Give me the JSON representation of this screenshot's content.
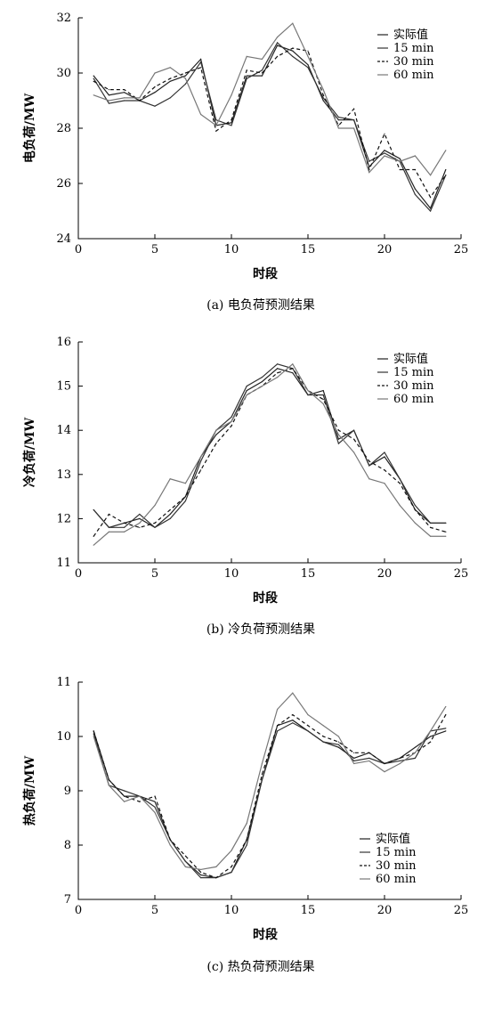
{
  "chart_data": [
    {
      "type": "line",
      "caption": "(a) 电负荷预测结果",
      "xlabel": "时段",
      "ylabel": "电负荷/MW",
      "xlim": [
        0,
        25
      ],
      "ylim": [
        24,
        32
      ],
      "xticks": [
        "0",
        "5",
        "10",
        "15",
        "20",
        "25"
      ],
      "yticks": [
        "24",
        "26",
        "28",
        "30",
        "32"
      ],
      "legend_position": "top-right",
      "grid": false,
      "x": [
        1,
        2,
        3,
        4,
        5,
        6,
        7,
        8,
        9,
        10,
        11,
        12,
        13,
        14,
        15,
        16,
        17,
        18,
        19,
        20,
        21,
        22,
        23,
        24
      ],
      "series": [
        {
          "name": "实际值",
          "dash": "solid",
          "color": "#222222",
          "values": [
            29.9,
            29.2,
            29.3,
            29.0,
            29.3,
            29.7,
            29.9,
            30.5,
            28.1,
            28.2,
            29.9,
            29.9,
            31.0,
            30.8,
            30.3,
            29.0,
            28.3,
            28.3,
            26.6,
            27.2,
            26.9,
            25.8,
            25.1,
            26.5
          ]
        },
        {
          "name": "15 min",
          "dash": "solid",
          "color": "#333333",
          "values": [
            29.8,
            28.9,
            29.0,
            29.0,
            28.8,
            29.1,
            29.6,
            30.4,
            28.3,
            28.1,
            29.8,
            30.1,
            31.1,
            30.6,
            30.2,
            29.1,
            28.4,
            28.3,
            26.8,
            27.1,
            26.8,
            25.6,
            25.0,
            26.3
          ]
        },
        {
          "name": "30 min",
          "dash": "dashed",
          "color": "#111111",
          "values": [
            29.7,
            29.4,
            29.4,
            29.0,
            29.5,
            29.8,
            30.0,
            30.2,
            27.9,
            28.3,
            30.1,
            30.0,
            30.6,
            30.9,
            30.8,
            29.2,
            28.1,
            28.7,
            26.5,
            27.8,
            26.5,
            26.5,
            25.5,
            26.3
          ]
        },
        {
          "name": "60 min",
          "dash": "solid",
          "color": "#777777",
          "values": [
            29.2,
            29.0,
            29.1,
            29.1,
            30.0,
            30.2,
            29.8,
            28.5,
            28.1,
            29.2,
            30.6,
            30.5,
            31.3,
            31.8,
            30.6,
            29.4,
            28.0,
            28.0,
            26.4,
            27.0,
            26.8,
            27.0,
            26.3,
            27.2
          ]
        }
      ]
    },
    {
      "type": "line",
      "caption": "(b) 冷负荷预测结果",
      "xlabel": "时段",
      "ylabel": "冷负荷/MW",
      "xlim": [
        0,
        25
      ],
      "ylim": [
        11,
        16
      ],
      "xticks": [
        "0",
        "5",
        "10",
        "15",
        "20",
        "25"
      ],
      "yticks": [
        "11",
        "12",
        "13",
        "14",
        "15",
        "16"
      ],
      "legend_position": "top-right",
      "grid": false,
      "x": [
        1,
        2,
        3,
        4,
        5,
        6,
        7,
        8,
        9,
        10,
        11,
        12,
        13,
        14,
        15,
        16,
        17,
        18,
        19,
        20,
        21,
        22,
        23,
        24
      ],
      "series": [
        {
          "name": "实际值",
          "dash": "solid",
          "color": "#222222",
          "values": [
            12.2,
            11.8,
            11.9,
            12.0,
            11.8,
            12.1,
            12.5,
            13.4,
            13.9,
            14.2,
            14.9,
            15.1,
            15.4,
            15.3,
            14.8,
            14.9,
            13.8,
            14.0,
            13.2,
            13.4,
            12.9,
            12.2,
            11.9,
            11.9
          ]
        },
        {
          "name": "15 min",
          "dash": "solid",
          "color": "#333333",
          "values": [
            12.2,
            11.8,
            11.8,
            12.1,
            11.8,
            12.0,
            12.4,
            13.3,
            14.0,
            14.3,
            15.0,
            15.2,
            15.5,
            15.4,
            14.8,
            14.8,
            13.7,
            14.0,
            13.2,
            13.5,
            12.9,
            12.3,
            11.9,
            11.9
          ]
        },
        {
          "name": "30 min",
          "dash": "dashed",
          "color": "#111111",
          "values": [
            11.6,
            12.1,
            11.9,
            11.8,
            11.9,
            12.2,
            12.5,
            13.1,
            13.7,
            14.1,
            14.8,
            15.0,
            15.3,
            15.4,
            14.9,
            14.7,
            14.0,
            13.8,
            13.3,
            13.1,
            12.8,
            12.2,
            11.8,
            11.7
          ]
        },
        {
          "name": "60 min",
          "dash": "solid",
          "color": "#777777",
          "values": [
            11.4,
            11.7,
            11.7,
            11.9,
            12.3,
            12.9,
            12.8,
            13.4,
            14.0,
            14.2,
            14.8,
            15.0,
            15.2,
            15.5,
            14.9,
            14.6,
            13.9,
            13.5,
            12.9,
            12.8,
            12.3,
            11.9,
            11.6,
            11.6
          ]
        }
      ]
    },
    {
      "type": "line",
      "caption": "(c) 热负荷预测结果",
      "xlabel": "时段",
      "ylabel": "热负荷/MW",
      "xlim": [
        0,
        25
      ],
      "ylim": [
        7,
        11
      ],
      "xticks": [
        "0",
        "5",
        "10",
        "15",
        "20",
        "25"
      ],
      "yticks": [
        "7",
        "8",
        "9",
        "10",
        "11"
      ],
      "legend_position": "bottom-right",
      "grid": false,
      "x": [
        1,
        2,
        3,
        4,
        5,
        6,
        7,
        8,
        9,
        10,
        11,
        12,
        13,
        14,
        15,
        16,
        17,
        18,
        19,
        20,
        21,
        22,
        23,
        24
      ],
      "series": [
        {
          "name": "实际值",
          "dash": "solid",
          "color": "#222222",
          "values": [
            10.1,
            9.2,
            8.9,
            8.9,
            8.8,
            8.1,
            7.7,
            7.45,
            7.4,
            7.5,
            8.1,
            9.2,
            10.2,
            10.3,
            10.1,
            9.9,
            9.8,
            9.6,
            9.7,
            9.5,
            9.6,
            9.8,
            10.0,
            10.1
          ]
        },
        {
          "name": "15 min",
          "dash": "solid",
          "color": "#333333",
          "values": [
            10.05,
            9.1,
            9.0,
            8.9,
            8.7,
            8.1,
            7.7,
            7.4,
            7.4,
            7.5,
            8.0,
            9.2,
            10.1,
            10.25,
            10.1,
            9.9,
            9.85,
            9.55,
            9.6,
            9.5,
            9.55,
            9.6,
            10.1,
            10.15
          ]
        },
        {
          "name": "30 min",
          "dash": "dashed",
          "color": "#111111",
          "values": [
            10.1,
            9.2,
            8.9,
            8.8,
            8.9,
            8.1,
            7.8,
            7.5,
            7.4,
            7.6,
            8.1,
            9.3,
            10.2,
            10.4,
            10.2,
            10.0,
            9.9,
            9.7,
            9.7,
            9.5,
            9.6,
            9.7,
            9.9,
            10.4
          ]
        },
        {
          "name": "60 min",
          "dash": "solid",
          "color": "#777777",
          "values": [
            10.0,
            9.1,
            8.8,
            8.9,
            8.6,
            8.0,
            7.6,
            7.55,
            7.6,
            7.9,
            8.4,
            9.5,
            10.5,
            10.8,
            10.4,
            10.2,
            10.0,
            9.5,
            9.55,
            9.35,
            9.5,
            9.7,
            10.1,
            10.55
          ]
        }
      ]
    }
  ]
}
